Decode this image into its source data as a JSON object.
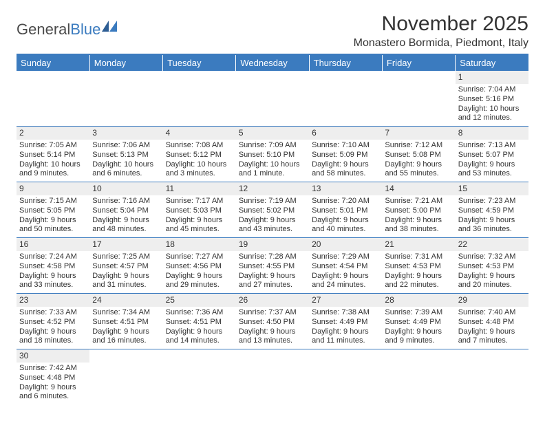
{
  "brand": {
    "name1": "General",
    "name2": "Blue"
  },
  "title": "November 2025",
  "location": "Monastero Bormida, Piedmont, Italy",
  "colors": {
    "accent": "#3b7bbf",
    "header_bg": "#3b7bbf",
    "daynum_bg": "#eeeeee",
    "text": "#333333"
  },
  "day_headers": [
    "Sunday",
    "Monday",
    "Tuesday",
    "Wednesday",
    "Thursday",
    "Friday",
    "Saturday"
  ],
  "weeks": [
    [
      null,
      null,
      null,
      null,
      null,
      null,
      {
        "n": "1",
        "sunrise": "Sunrise: 7:04 AM",
        "sunset": "Sunset: 5:16 PM",
        "daylight": "Daylight: 10 hours and 12 minutes."
      }
    ],
    [
      {
        "n": "2",
        "sunrise": "Sunrise: 7:05 AM",
        "sunset": "Sunset: 5:14 PM",
        "daylight": "Daylight: 10 hours and 9 minutes."
      },
      {
        "n": "3",
        "sunrise": "Sunrise: 7:06 AM",
        "sunset": "Sunset: 5:13 PM",
        "daylight": "Daylight: 10 hours and 6 minutes."
      },
      {
        "n": "4",
        "sunrise": "Sunrise: 7:08 AM",
        "sunset": "Sunset: 5:12 PM",
        "daylight": "Daylight: 10 hours and 3 minutes."
      },
      {
        "n": "5",
        "sunrise": "Sunrise: 7:09 AM",
        "sunset": "Sunset: 5:10 PM",
        "daylight": "Daylight: 10 hours and 1 minute."
      },
      {
        "n": "6",
        "sunrise": "Sunrise: 7:10 AM",
        "sunset": "Sunset: 5:09 PM",
        "daylight": "Daylight: 9 hours and 58 minutes."
      },
      {
        "n": "7",
        "sunrise": "Sunrise: 7:12 AM",
        "sunset": "Sunset: 5:08 PM",
        "daylight": "Daylight: 9 hours and 55 minutes."
      },
      {
        "n": "8",
        "sunrise": "Sunrise: 7:13 AM",
        "sunset": "Sunset: 5:07 PM",
        "daylight": "Daylight: 9 hours and 53 minutes."
      }
    ],
    [
      {
        "n": "9",
        "sunrise": "Sunrise: 7:15 AM",
        "sunset": "Sunset: 5:05 PM",
        "daylight": "Daylight: 9 hours and 50 minutes."
      },
      {
        "n": "10",
        "sunrise": "Sunrise: 7:16 AM",
        "sunset": "Sunset: 5:04 PM",
        "daylight": "Daylight: 9 hours and 48 minutes."
      },
      {
        "n": "11",
        "sunrise": "Sunrise: 7:17 AM",
        "sunset": "Sunset: 5:03 PM",
        "daylight": "Daylight: 9 hours and 45 minutes."
      },
      {
        "n": "12",
        "sunrise": "Sunrise: 7:19 AM",
        "sunset": "Sunset: 5:02 PM",
        "daylight": "Daylight: 9 hours and 43 minutes."
      },
      {
        "n": "13",
        "sunrise": "Sunrise: 7:20 AM",
        "sunset": "Sunset: 5:01 PM",
        "daylight": "Daylight: 9 hours and 40 minutes."
      },
      {
        "n": "14",
        "sunrise": "Sunrise: 7:21 AM",
        "sunset": "Sunset: 5:00 PM",
        "daylight": "Daylight: 9 hours and 38 minutes."
      },
      {
        "n": "15",
        "sunrise": "Sunrise: 7:23 AM",
        "sunset": "Sunset: 4:59 PM",
        "daylight": "Daylight: 9 hours and 36 minutes."
      }
    ],
    [
      {
        "n": "16",
        "sunrise": "Sunrise: 7:24 AM",
        "sunset": "Sunset: 4:58 PM",
        "daylight": "Daylight: 9 hours and 33 minutes."
      },
      {
        "n": "17",
        "sunrise": "Sunrise: 7:25 AM",
        "sunset": "Sunset: 4:57 PM",
        "daylight": "Daylight: 9 hours and 31 minutes."
      },
      {
        "n": "18",
        "sunrise": "Sunrise: 7:27 AM",
        "sunset": "Sunset: 4:56 PM",
        "daylight": "Daylight: 9 hours and 29 minutes."
      },
      {
        "n": "19",
        "sunrise": "Sunrise: 7:28 AM",
        "sunset": "Sunset: 4:55 PM",
        "daylight": "Daylight: 9 hours and 27 minutes."
      },
      {
        "n": "20",
        "sunrise": "Sunrise: 7:29 AM",
        "sunset": "Sunset: 4:54 PM",
        "daylight": "Daylight: 9 hours and 24 minutes."
      },
      {
        "n": "21",
        "sunrise": "Sunrise: 7:31 AM",
        "sunset": "Sunset: 4:53 PM",
        "daylight": "Daylight: 9 hours and 22 minutes."
      },
      {
        "n": "22",
        "sunrise": "Sunrise: 7:32 AM",
        "sunset": "Sunset: 4:53 PM",
        "daylight": "Daylight: 9 hours and 20 minutes."
      }
    ],
    [
      {
        "n": "23",
        "sunrise": "Sunrise: 7:33 AM",
        "sunset": "Sunset: 4:52 PM",
        "daylight": "Daylight: 9 hours and 18 minutes."
      },
      {
        "n": "24",
        "sunrise": "Sunrise: 7:34 AM",
        "sunset": "Sunset: 4:51 PM",
        "daylight": "Daylight: 9 hours and 16 minutes."
      },
      {
        "n": "25",
        "sunrise": "Sunrise: 7:36 AM",
        "sunset": "Sunset: 4:51 PM",
        "daylight": "Daylight: 9 hours and 14 minutes."
      },
      {
        "n": "26",
        "sunrise": "Sunrise: 7:37 AM",
        "sunset": "Sunset: 4:50 PM",
        "daylight": "Daylight: 9 hours and 13 minutes."
      },
      {
        "n": "27",
        "sunrise": "Sunrise: 7:38 AM",
        "sunset": "Sunset: 4:49 PM",
        "daylight": "Daylight: 9 hours and 11 minutes."
      },
      {
        "n": "28",
        "sunrise": "Sunrise: 7:39 AM",
        "sunset": "Sunset: 4:49 PM",
        "daylight": "Daylight: 9 hours and 9 minutes."
      },
      {
        "n": "29",
        "sunrise": "Sunrise: 7:40 AM",
        "sunset": "Sunset: 4:48 PM",
        "daylight": "Daylight: 9 hours and 7 minutes."
      }
    ],
    [
      {
        "n": "30",
        "sunrise": "Sunrise: 7:42 AM",
        "sunset": "Sunset: 4:48 PM",
        "daylight": "Daylight: 9 hours and 6 minutes."
      },
      null,
      null,
      null,
      null,
      null,
      null
    ]
  ]
}
